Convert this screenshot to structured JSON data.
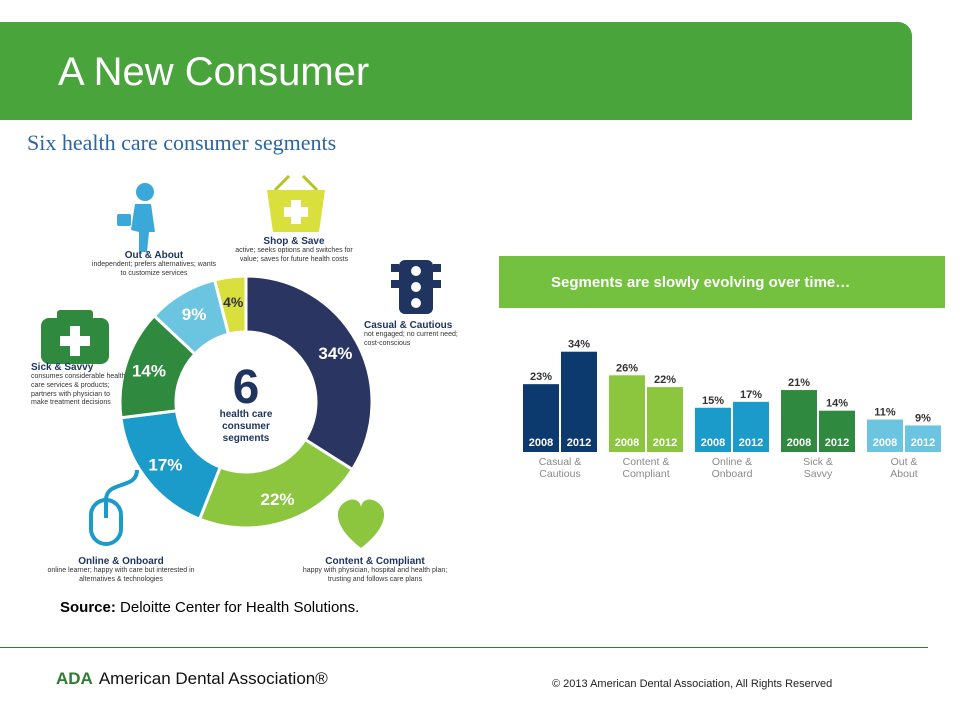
{
  "slide": {
    "title": "A New Consumer",
    "source_label": "Source:",
    "source_text": " Deloitte Center for Health Solutions.",
    "footer_logo_abbr": "ADA",
    "footer_logo_name": "American Dental Association®",
    "footer_copyright": "© 2013 American Dental Association, All Rights Reserved"
  },
  "chart_data": [
    {
      "type": "pie",
      "title": "Six health care consumer segments",
      "center_number": "6",
      "center_text": "health care consumer segments",
      "slices": [
        {
          "name": "Casual & Cautious",
          "value": 34,
          "label": "34%",
          "description": "not engaged; no current need; cost-conscious",
          "color": "#2a3561"
        },
        {
          "name": "Content & Compliant",
          "value": 22,
          "label": "22%",
          "description": "happy with physician, hospital and health plan; trusting and follows care plans",
          "color": "#8cc63f"
        },
        {
          "name": "Online & Onboard",
          "value": 17,
          "label": "17%",
          "description": "online learner; happy with care but interested in alternatives & technologies",
          "color": "#1a9bc9"
        },
        {
          "name": "Sick & Savvy",
          "value": 14,
          "label": "14%",
          "description": "consumes considerable health care services & products; partners with physician to make treatment decisions",
          "color": "#2f8a3f"
        },
        {
          "name": "Out & About",
          "value": 9,
          "label": "9%",
          "description": "independent; prefers alternatives; wants to customize services",
          "color": "#6cc5e0"
        },
        {
          "name": "Shop & Save",
          "value": 4,
          "label": "4%",
          "description": "active; seeks options and switches for value; saves for future health costs",
          "color": "#d9df3d"
        }
      ]
    },
    {
      "type": "bar",
      "title": "Segments are slowly evolving over time…",
      "categories": [
        "Casual & Cautious",
        "Content & Compliant",
        "Online & Onboard",
        "Sick & Savvy",
        "Out & About"
      ],
      "series": [
        {
          "name": "2008",
          "values": [
            23,
            26,
            15,
            21,
            11
          ]
        },
        {
          "name": "2012",
          "values": [
            34,
            22,
            17,
            14,
            9
          ]
        }
      ],
      "value_labels": [
        [
          "23%",
          "34%"
        ],
        [
          "26%",
          "22%"
        ],
        [
          "15%",
          "17%"
        ],
        [
          "21%",
          "14%"
        ],
        [
          "11%",
          "9%"
        ]
      ],
      "colors": [
        [
          "#0d3a6e",
          "#0d3a6e"
        ],
        [
          "#8cc63f",
          "#8cc63f"
        ],
        [
          "#1a9bc9",
          "#1a9bc9"
        ],
        [
          "#2f8a3f",
          "#2f8a3f"
        ],
        [
          "#6cc5e0",
          "#6cc5e0"
        ]
      ],
      "ylim": [
        0,
        40
      ]
    }
  ]
}
